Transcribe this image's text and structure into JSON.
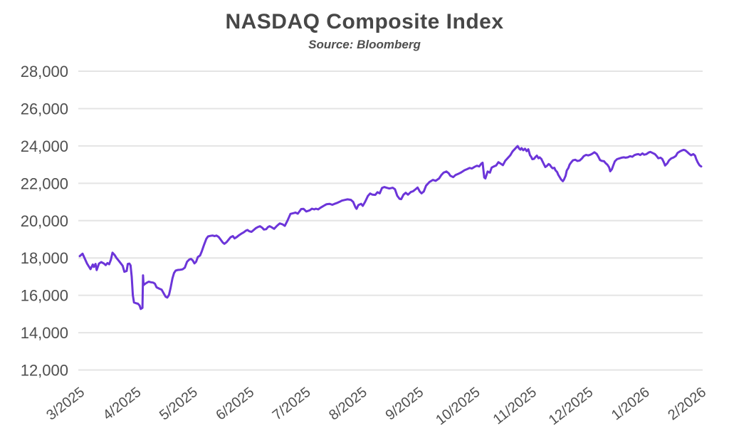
{
  "chart_data": {
    "type": "line",
    "title": "NASDAQ Composite Index",
    "subtitle": "Source: Bloomberg",
    "series_name": "NASDAQ Composite Index",
    "line_color": "#6C35D9",
    "grid_color": "#E4E4E4",
    "axis_text_color": "#4F4F4F",
    "background_color": "#FFFFFF",
    "grid": "horizontal-only",
    "legend": "none",
    "ylim": [
      12000,
      28000
    ],
    "y_ticks": [
      {
        "value": 12000,
        "label": "12,000"
      },
      {
        "value": 14000,
        "label": "14,000"
      },
      {
        "value": 16000,
        "label": "16,000"
      },
      {
        "value": 18000,
        "label": "18,000"
      },
      {
        "value": 20000,
        "label": "20,000"
      },
      {
        "value": 22000,
        "label": "22,000"
      },
      {
        "value": 24000,
        "label": "24,000"
      },
      {
        "value": 26000,
        "label": "26,000"
      },
      {
        "value": 28000,
        "label": "28,000"
      }
    ],
    "x_tick_labels": [
      "3/2025",
      "4/2025",
      "5/2025",
      "6/2025",
      "7/2025",
      "8/2025",
      "9/2025",
      "10/2025",
      "11/2025",
      "12/2025",
      "1/2026",
      "2/2026"
    ],
    "x_unit": "months after 3/2025 tick (0 = 3/2025, 11 = 2/2026)",
    "points": [
      [
        0,
        18100
      ],
      [
        0.05,
        18230
      ],
      [
        0.13,
        17700
      ],
      [
        0.16,
        17550
      ],
      [
        0.19,
        17400
      ],
      [
        0.23,
        17650
      ],
      [
        0.25,
        17520
      ],
      [
        0.28,
        17680
      ],
      [
        0.3,
        17350
      ],
      [
        0.34,
        17700
      ],
      [
        0.38,
        17780
      ],
      [
        0.43,
        17700
      ],
      [
        0.46,
        17620
      ],
      [
        0.49,
        17730
      ],
      [
        0.52,
        17660
      ],
      [
        0.55,
        17900
      ],
      [
        0.58,
        18280
      ],
      [
        0.62,
        18150
      ],
      [
        0.65,
        18000
      ],
      [
        0.69,
        17850
      ],
      [
        0.73,
        17700
      ],
      [
        0.76,
        17580
      ],
      [
        0.79,
        17260
      ],
      [
        0.83,
        17300
      ],
      [
        0.85,
        17680
      ],
      [
        0.88,
        17700
      ],
      [
        0.9,
        17600
      ],
      [
        0.92,
        17000
      ],
      [
        0.94,
        16000
      ],
      [
        0.96,
        15620
      ],
      [
        1,
        15570
      ],
      [
        1.03,
        15550
      ],
      [
        1.06,
        15450
      ],
      [
        1.08,
        15270
      ],
      [
        1.11,
        15330
      ],
      [
        1.12,
        17070
      ],
      [
        1.13,
        16550
      ],
      [
        1.15,
        16600
      ],
      [
        1.18,
        16660
      ],
      [
        1.22,
        16730
      ],
      [
        1.26,
        16700
      ],
      [
        1.3,
        16680
      ],
      [
        1.33,
        16620
      ],
      [
        1.36,
        16430
      ],
      [
        1.41,
        16350
      ],
      [
        1.45,
        16300
      ],
      [
        1.49,
        16080
      ],
      [
        1.52,
        15930
      ],
      [
        1.55,
        15880
      ],
      [
        1.58,
        16020
      ],
      [
        1.61,
        16430
      ],
      [
        1.64,
        16900
      ],
      [
        1.67,
        17200
      ],
      [
        1.7,
        17330
      ],
      [
        1.74,
        17360
      ],
      [
        1.78,
        17370
      ],
      [
        1.82,
        17390
      ],
      [
        1.86,
        17480
      ],
      [
        1.9,
        17800
      ],
      [
        1.94,
        17920
      ],
      [
        1.97,
        17950
      ],
      [
        2,
        17870
      ],
      [
        2.03,
        17710
      ],
      [
        2.06,
        17800
      ],
      [
        2.09,
        18050
      ],
      [
        2.13,
        18130
      ],
      [
        2.16,
        18350
      ],
      [
        2.2,
        18700
      ],
      [
        2.24,
        19020
      ],
      [
        2.27,
        19150
      ],
      [
        2.31,
        19180
      ],
      [
        2.35,
        19200
      ],
      [
        2.39,
        19170
      ],
      [
        2.42,
        19200
      ],
      [
        2.46,
        19120
      ],
      [
        2.49,
        19000
      ],
      [
        2.53,
        18830
      ],
      [
        2.56,
        18760
      ],
      [
        2.6,
        18850
      ],
      [
        2.63,
        18960
      ],
      [
        2.67,
        19110
      ],
      [
        2.71,
        19170
      ],
      [
        2.74,
        19050
      ],
      [
        2.78,
        19120
      ],
      [
        2.82,
        19220
      ],
      [
        2.86,
        19300
      ],
      [
        2.9,
        19370
      ],
      [
        2.94,
        19460
      ],
      [
        2.97,
        19500
      ],
      [
        3,
        19430
      ],
      [
        3.04,
        19400
      ],
      [
        3.08,
        19500
      ],
      [
        3.12,
        19600
      ],
      [
        3.15,
        19650
      ],
      [
        3.19,
        19700
      ],
      [
        3.23,
        19620
      ],
      [
        3.26,
        19520
      ],
      [
        3.3,
        19540
      ],
      [
        3.33,
        19650
      ],
      [
        3.36,
        19700
      ],
      [
        3.4,
        19640
      ],
      [
        3.44,
        19560
      ],
      [
        3.49,
        19720
      ],
      [
        3.54,
        19850
      ],
      [
        3.59,
        19800
      ],
      [
        3.63,
        19720
      ],
      [
        3.68,
        20020
      ],
      [
        3.73,
        20360
      ],
      [
        3.78,
        20400
      ],
      [
        3.82,
        20430
      ],
      [
        3.86,
        20370
      ],
      [
        3.92,
        20620
      ],
      [
        3.96,
        20630
      ],
      [
        4.01,
        20490
      ],
      [
        4.07,
        20550
      ],
      [
        4.11,
        20640
      ],
      [
        4.15,
        20600
      ],
      [
        4.18,
        20640
      ],
      [
        4.22,
        20600
      ],
      [
        4.26,
        20690
      ],
      [
        4.3,
        20760
      ],
      [
        4.34,
        20830
      ],
      [
        4.37,
        20880
      ],
      [
        4.42,
        20900
      ],
      [
        4.47,
        20850
      ],
      [
        4.51,
        20900
      ],
      [
        4.55,
        20940
      ],
      [
        4.6,
        21010
      ],
      [
        4.64,
        21070
      ],
      [
        4.7,
        21110
      ],
      [
        4.74,
        21140
      ],
      [
        4.8,
        21110
      ],
      [
        4.84,
        21000
      ],
      [
        4.88,
        20710
      ],
      [
        4.9,
        20630
      ],
      [
        4.93,
        20830
      ],
      [
        4.98,
        20900
      ],
      [
        5.01,
        20790
      ],
      [
        5.05,
        21000
      ],
      [
        5.1,
        21320
      ],
      [
        5.14,
        21450
      ],
      [
        5.18,
        21390
      ],
      [
        5.23,
        21380
      ],
      [
        5.27,
        21520
      ],
      [
        5.31,
        21460
      ],
      [
        5.35,
        21750
      ],
      [
        5.39,
        21800
      ],
      [
        5.43,
        21760
      ],
      [
        5.48,
        21720
      ],
      [
        5.54,
        21760
      ],
      [
        5.58,
        21680
      ],
      [
        5.62,
        21330
      ],
      [
        5.66,
        21170
      ],
      [
        5.69,
        21150
      ],
      [
        5.73,
        21390
      ],
      [
        5.77,
        21490
      ],
      [
        5.81,
        21390
      ],
      [
        5.86,
        21530
      ],
      [
        5.9,
        21570
      ],
      [
        5.94,
        21670
      ],
      [
        5.98,
        21770
      ],
      [
        6.02,
        21550
      ],
      [
        6.05,
        21460
      ],
      [
        6.09,
        21560
      ],
      [
        6.13,
        21870
      ],
      [
        6.19,
        22070
      ],
      [
        6.25,
        22180
      ],
      [
        6.3,
        22130
      ],
      [
        6.36,
        22260
      ],
      [
        6.4,
        22440
      ],
      [
        6.44,
        22570
      ],
      [
        6.49,
        22630
      ],
      [
        6.53,
        22540
      ],
      [
        6.56,
        22400
      ],
      [
        6.61,
        22330
      ],
      [
        6.65,
        22440
      ],
      [
        6.71,
        22520
      ],
      [
        6.75,
        22580
      ],
      [
        6.81,
        22700
      ],
      [
        6.86,
        22760
      ],
      [
        6.9,
        22820
      ],
      [
        6.94,
        22790
      ],
      [
        6.99,
        22880
      ],
      [
        7.03,
        22940
      ],
      [
        7.07,
        22900
      ],
      [
        7.11,
        23060
      ],
      [
        7.13,
        23100
      ],
      [
        7.16,
        22310
      ],
      [
        7.18,
        22260
      ],
      [
        7.22,
        22630
      ],
      [
        7.26,
        22570
      ],
      [
        7.29,
        22840
      ],
      [
        7.33,
        22900
      ],
      [
        7.37,
        22950
      ],
      [
        7.41,
        23130
      ],
      [
        7.45,
        23050
      ],
      [
        7.49,
        22970
      ],
      [
        7.53,
        23200
      ],
      [
        7.57,
        23330
      ],
      [
        7.62,
        23500
      ],
      [
        7.66,
        23700
      ],
      [
        7.7,
        23830
      ],
      [
        7.73,
        23930
      ],
      [
        7.75,
        23990
      ],
      [
        7.78,
        23850
      ],
      [
        7.8,
        23800
      ],
      [
        7.82,
        23880
      ],
      [
        7.85,
        23770
      ],
      [
        7.88,
        23850
      ],
      [
        7.91,
        23720
      ],
      [
        7.94,
        23820
      ],
      [
        7.97,
        23500
      ],
      [
        7.99,
        23420
      ],
      [
        8.01,
        23290
      ],
      [
        8.04,
        23310
      ],
      [
        8.07,
        23420
      ],
      [
        8.09,
        23480
      ],
      [
        8.12,
        23340
      ],
      [
        8.14,
        23390
      ],
      [
        8.17,
        23300
      ],
      [
        8.19,
        23170
      ],
      [
        8.22,
        22990
      ],
      [
        8.24,
        22870
      ],
      [
        8.27,
        22930
      ],
      [
        8.3,
        23030
      ],
      [
        8.32,
        22990
      ],
      [
        8.35,
        22860
      ],
      [
        8.37,
        22800
      ],
      [
        8.4,
        22830
      ],
      [
        8.42,
        22700
      ],
      [
        8.45,
        22600
      ],
      [
        8.47,
        22450
      ],
      [
        8.5,
        22300
      ],
      [
        8.52,
        22200
      ],
      [
        8.55,
        22110
      ],
      [
        8.57,
        22190
      ],
      [
        8.6,
        22400
      ],
      [
        8.62,
        22680
      ],
      [
        8.65,
        22830
      ],
      [
        8.67,
        23000
      ],
      [
        8.7,
        23130
      ],
      [
        8.73,
        23230
      ],
      [
        8.77,
        23260
      ],
      [
        8.81,
        23190
      ],
      [
        8.85,
        23220
      ],
      [
        8.89,
        23330
      ],
      [
        8.92,
        23450
      ],
      [
        8.96,
        23520
      ],
      [
        9,
        23490
      ],
      [
        9.04,
        23530
      ],
      [
        9.07,
        23580
      ],
      [
        9.11,
        23660
      ],
      [
        9.15,
        23570
      ],
      [
        9.18,
        23410
      ],
      [
        9.21,
        23240
      ],
      [
        9.24,
        23200
      ],
      [
        9.28,
        23180
      ],
      [
        9.31,
        23070
      ],
      [
        9.34,
        22990
      ],
      [
        9.37,
        22850
      ],
      [
        9.39,
        22640
      ],
      [
        9.42,
        22760
      ],
      [
        9.44,
        22930
      ],
      [
        9.47,
        23170
      ],
      [
        9.51,
        23290
      ],
      [
        9.55,
        23330
      ],
      [
        9.59,
        23370
      ],
      [
        9.63,
        23390
      ],
      [
        9.66,
        23370
      ],
      [
        9.7,
        23390
      ],
      [
        9.74,
        23450
      ],
      [
        9.78,
        23420
      ],
      [
        9.82,
        23510
      ],
      [
        9.86,
        23550
      ],
      [
        9.89,
        23560
      ],
      [
        9.92,
        23510
      ],
      [
        9.96,
        23600
      ],
      [
        9.99,
        23530
      ],
      [
        10.03,
        23560
      ],
      [
        10.07,
        23650
      ],
      [
        10.1,
        23680
      ],
      [
        10.14,
        23620
      ],
      [
        10.18,
        23560
      ],
      [
        10.21,
        23460
      ],
      [
        10.24,
        23340
      ],
      [
        10.28,
        23370
      ],
      [
        10.31,
        23300
      ],
      [
        10.34,
        23110
      ],
      [
        10.36,
        22950
      ],
      [
        10.4,
        23070
      ],
      [
        10.43,
        23230
      ],
      [
        10.47,
        23330
      ],
      [
        10.51,
        23380
      ],
      [
        10.55,
        23460
      ],
      [
        10.58,
        23620
      ],
      [
        10.62,
        23700
      ],
      [
        10.66,
        23760
      ],
      [
        10.69,
        23790
      ],
      [
        10.72,
        23760
      ],
      [
        10.75,
        23680
      ],
      [
        10.79,
        23570
      ],
      [
        10.82,
        23500
      ],
      [
        10.86,
        23560
      ],
      [
        10.89,
        23480
      ],
      [
        10.91,
        23300
      ],
      [
        10.94,
        23110
      ],
      [
        10.97,
        22960
      ],
      [
        11,
        22900
      ]
    ]
  }
}
